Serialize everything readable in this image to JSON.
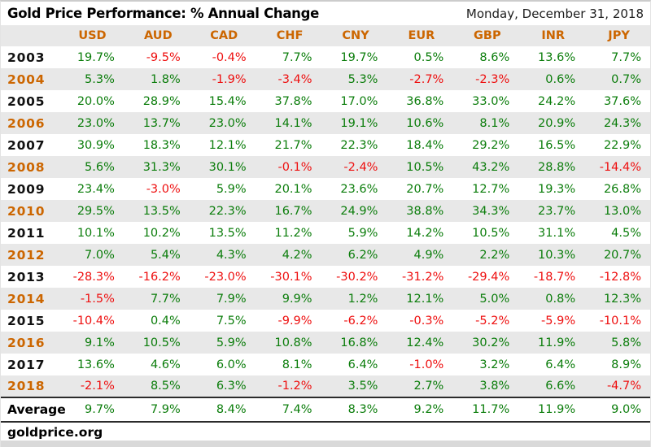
{
  "header": {
    "title": "Gold Price Performance: % Annual Change",
    "date": "Monday, December 31, 2018"
  },
  "footer": {
    "site": "goldprice.org"
  },
  "colors": {
    "positive_green": "#0b7d0b",
    "negative_red": "#ee0f0f",
    "accent_orange": "#cc6600",
    "row_alt_bg": "#e8e8e8",
    "rule_black": "#2b2b2b"
  },
  "chart_data": {
    "type": "table",
    "title": "Gold Price Performance: % Annual Change",
    "date_label": "Monday, December 31, 2018",
    "columns": [
      "USD",
      "AUD",
      "CAD",
      "CHF",
      "CNY",
      "EUR",
      "GBP",
      "INR",
      "JPY"
    ],
    "rows": [
      {
        "year": "2003",
        "values": [
          "19.7%",
          "-9.5%",
          "-0.4%",
          "7.7%",
          "19.7%",
          "0.5%",
          "8.6%",
          "13.6%",
          "7.7%"
        ]
      },
      {
        "year": "2004",
        "values": [
          "5.3%",
          "1.8%",
          "-1.9%",
          "-3.4%",
          "5.3%",
          "-2.7%",
          "-2.3%",
          "0.6%",
          "0.7%"
        ]
      },
      {
        "year": "2005",
        "values": [
          "20.0%",
          "28.9%",
          "15.4%",
          "37.8%",
          "17.0%",
          "36.8%",
          "33.0%",
          "24.2%",
          "37.6%"
        ]
      },
      {
        "year": "2006",
        "values": [
          "23.0%",
          "13.7%",
          "23.0%",
          "14.1%",
          "19.1%",
          "10.6%",
          "8.1%",
          "20.9%",
          "24.3%"
        ]
      },
      {
        "year": "2007",
        "values": [
          "30.9%",
          "18.3%",
          "12.1%",
          "21.7%",
          "22.3%",
          "18.4%",
          "29.2%",
          "16.5%",
          "22.9%"
        ]
      },
      {
        "year": "2008",
        "values": [
          "5.6%",
          "31.3%",
          "30.1%",
          "-0.1%",
          "-2.4%",
          "10.5%",
          "43.2%",
          "28.8%",
          "-14.4%"
        ]
      },
      {
        "year": "2009",
        "values": [
          "23.4%",
          "-3.0%",
          "5.9%",
          "20.1%",
          "23.6%",
          "20.7%",
          "12.7%",
          "19.3%",
          "26.8%"
        ]
      },
      {
        "year": "2010",
        "values": [
          "29.5%",
          "13.5%",
          "22.3%",
          "16.7%",
          "24.9%",
          "38.8%",
          "34.3%",
          "23.7%",
          "13.0%"
        ]
      },
      {
        "year": "2011",
        "values": [
          "10.1%",
          "10.2%",
          "13.5%",
          "11.2%",
          "5.9%",
          "14.2%",
          "10.5%",
          "31.1%",
          "4.5%"
        ]
      },
      {
        "year": "2012",
        "values": [
          "7.0%",
          "5.4%",
          "4.3%",
          "4.2%",
          "6.2%",
          "4.9%",
          "2.2%",
          "10.3%",
          "20.7%"
        ]
      },
      {
        "year": "2013",
        "values": [
          "-28.3%",
          "-16.2%",
          "-23.0%",
          "-30.1%",
          "-30.2%",
          "-31.2%",
          "-29.4%",
          "-18.7%",
          "-12.8%"
        ]
      },
      {
        "year": "2014",
        "values": [
          "-1.5%",
          "7.7%",
          "7.9%",
          "9.9%",
          "1.2%",
          "12.1%",
          "5.0%",
          "0.8%",
          "12.3%"
        ]
      },
      {
        "year": "2015",
        "values": [
          "-10.4%",
          "0.4%",
          "7.5%",
          "-9.9%",
          "-6.2%",
          "-0.3%",
          "-5.2%",
          "-5.9%",
          "-10.1%"
        ]
      },
      {
        "year": "2016",
        "values": [
          "9.1%",
          "10.5%",
          "5.9%",
          "10.8%",
          "16.8%",
          "12.4%",
          "30.2%",
          "11.9%",
          "5.8%"
        ]
      },
      {
        "year": "2017",
        "values": [
          "13.6%",
          "4.6%",
          "6.0%",
          "8.1%",
          "6.4%",
          "-1.0%",
          "3.2%",
          "6.4%",
          "8.9%"
        ]
      },
      {
        "year": "2018",
        "values": [
          "-2.1%",
          "8.5%",
          "6.3%",
          "-1.2%",
          "3.5%",
          "2.7%",
          "3.8%",
          "6.6%",
          "-4.7%"
        ]
      }
    ],
    "average": {
      "label": "Average",
      "values": [
        "9.7%",
        "7.9%",
        "8.4%",
        "7.4%",
        "8.3%",
        "9.2%",
        "11.7%",
        "11.9%",
        "9.0%"
      ]
    }
  }
}
